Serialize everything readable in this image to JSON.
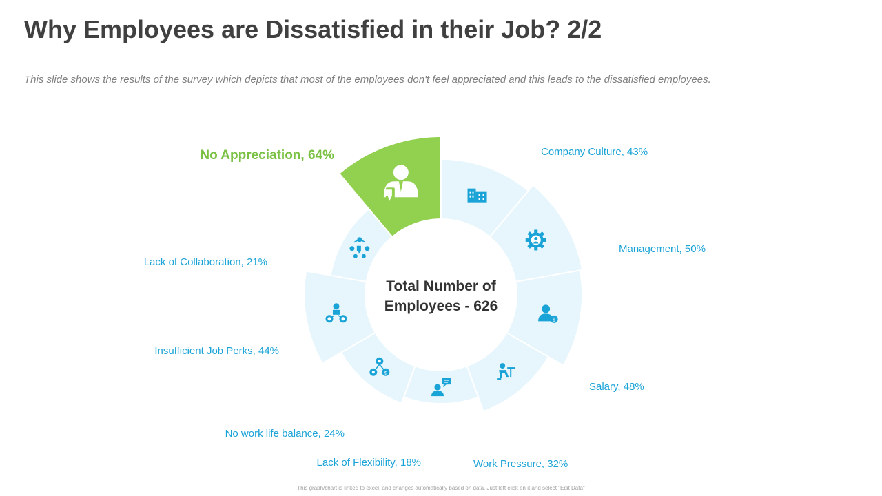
{
  "header": {
    "title": "Why Employees are Dissatisfied in their Job? 2/2",
    "subtitle": "This slide shows the results of the survey which depicts that most of the employees don't feel appreciated and this leads to the dissatisfied employees."
  },
  "footer": {
    "note": "This graph/chart is linked to excel, and changes automatically based on data. Just left click on it and select \"Edit Data\""
  },
  "colors": {
    "highlight": "#92D050",
    "segment": "#E6F6FC",
    "label": "#1AA3D6",
    "icon": "#1AA3D6",
    "highlight_label": "#7AC143"
  },
  "chart_data": {
    "type": "pie",
    "center_label": [
      "Total Number of",
      "Employees - 626"
    ],
    "slices": [
      {
        "label": "Company Culture, 43%",
        "name": "Company Culture",
        "value": 43,
        "icon": "building-icon",
        "highlight": false
      },
      {
        "label": "Management, 50%",
        "name": "Management",
        "value": 50,
        "icon": "gear-icon",
        "highlight": false
      },
      {
        "label": "Salary, 48%",
        "name": "Salary",
        "value": 48,
        "icon": "salary-person-icon",
        "highlight": false
      },
      {
        "label": "Work Pressure, 32%",
        "name": "Work Pressure",
        "value": 32,
        "icon": "desk-worker-icon",
        "highlight": false
      },
      {
        "label": "Lack of Flexibility, 18%",
        "name": "Lack of Flexibility",
        "value": 18,
        "icon": "chat-person-icon",
        "highlight": false
      },
      {
        "label": "No work life balance, 24%",
        "name": "No work life balance",
        "value": 24,
        "icon": "balance-network-icon",
        "highlight": false
      },
      {
        "label": "Insufficient  Job Perks, 44%",
        "name": "Insufficient Job Perks",
        "value": 44,
        "icon": "perks-network-icon",
        "highlight": false
      },
      {
        "label": "Lack of Collaboration, 21%",
        "name": "Lack of Collaboration",
        "value": 21,
        "icon": "team-dislike-icon",
        "highlight": false
      },
      {
        "label": "No Appreciation, 64%",
        "name": "No Appreciation",
        "value": 64,
        "icon": "person-thumbs-down-icon",
        "highlight": true
      }
    ]
  }
}
